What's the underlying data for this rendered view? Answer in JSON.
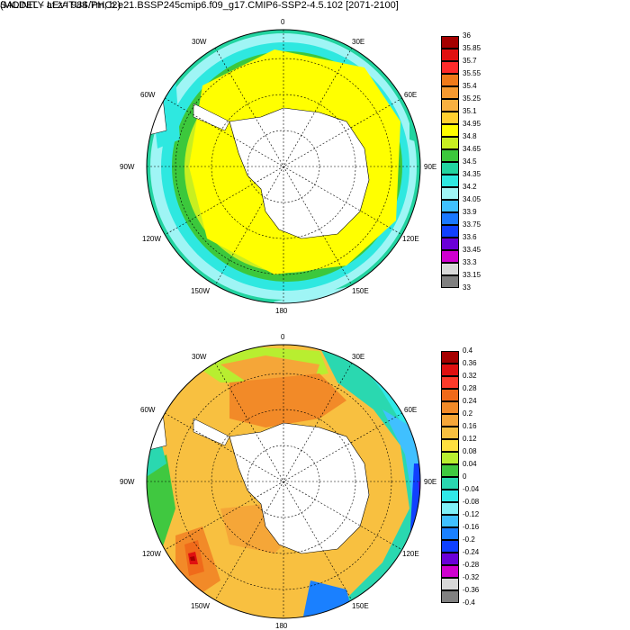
{
  "main_title": "SALINITY at z= 984.7m, b.e21.BSSP245cmip6.f09_g17.CMIP6-SSP2-4.5.102 [2071-2100]",
  "diff_title": "(MODEL - LEVITUS/PHC2)",
  "lon_labels": [
    "0",
    "30E",
    "60E",
    "90E",
    "120E",
    "150E",
    "180",
    "150W",
    "120W",
    "90W",
    "60W",
    "30W"
  ],
  "top_map": {
    "colorbar": {
      "labels": [
        "36",
        "35.85",
        "35.7",
        "35.55",
        "35.4",
        "35.25",
        "35.1",
        "34.95",
        "34.8",
        "34.65",
        "34.5",
        "34.35",
        "34.2",
        "34.05",
        "33.9",
        "33.75",
        "33.6",
        "33.45",
        "33.3",
        "33.15",
        "33"
      ],
      "colors": [
        "#a50000",
        "#e01010",
        "#ff2a2a",
        "#f07a1a",
        "#f79a30",
        "#f9b040",
        "#ffd030",
        "#ffff00",
        "#c8ef20",
        "#3cc83c",
        "#22d4a0",
        "#2ee8e0",
        "#9ff5f5",
        "#40c0ff",
        "#1a78ff",
        "#1040ff",
        "#6a00d8",
        "#d000d0",
        "#d8d8d8",
        "#808080"
      ]
    }
  },
  "bottom_map": {
    "colorbar": {
      "labels": [
        "0.4",
        "0.36",
        "0.32",
        "0.28",
        "0.24",
        "0.2",
        "0.16",
        "0.12",
        "0.08",
        "0.04",
        "0",
        "-0.04",
        "-0.08",
        "-0.12",
        "-0.16",
        "-0.2",
        "-0.24",
        "-0.28",
        "-0.32",
        "-0.36",
        "-0.4"
      ],
      "colors": [
        "#a50000",
        "#e01010",
        "#ff3a2a",
        "#f06a1a",
        "#f28a28",
        "#f5a638",
        "#f8c040",
        "#ffe040",
        "#b8ee30",
        "#40c840",
        "#2ad8b0",
        "#30e8e8",
        "#7ff0f8",
        "#40c0ff",
        "#1a80ff",
        "#1040ff",
        "#6a00d8",
        "#d000d0",
        "#d8d8d8",
        "#808080"
      ]
    }
  }
}
